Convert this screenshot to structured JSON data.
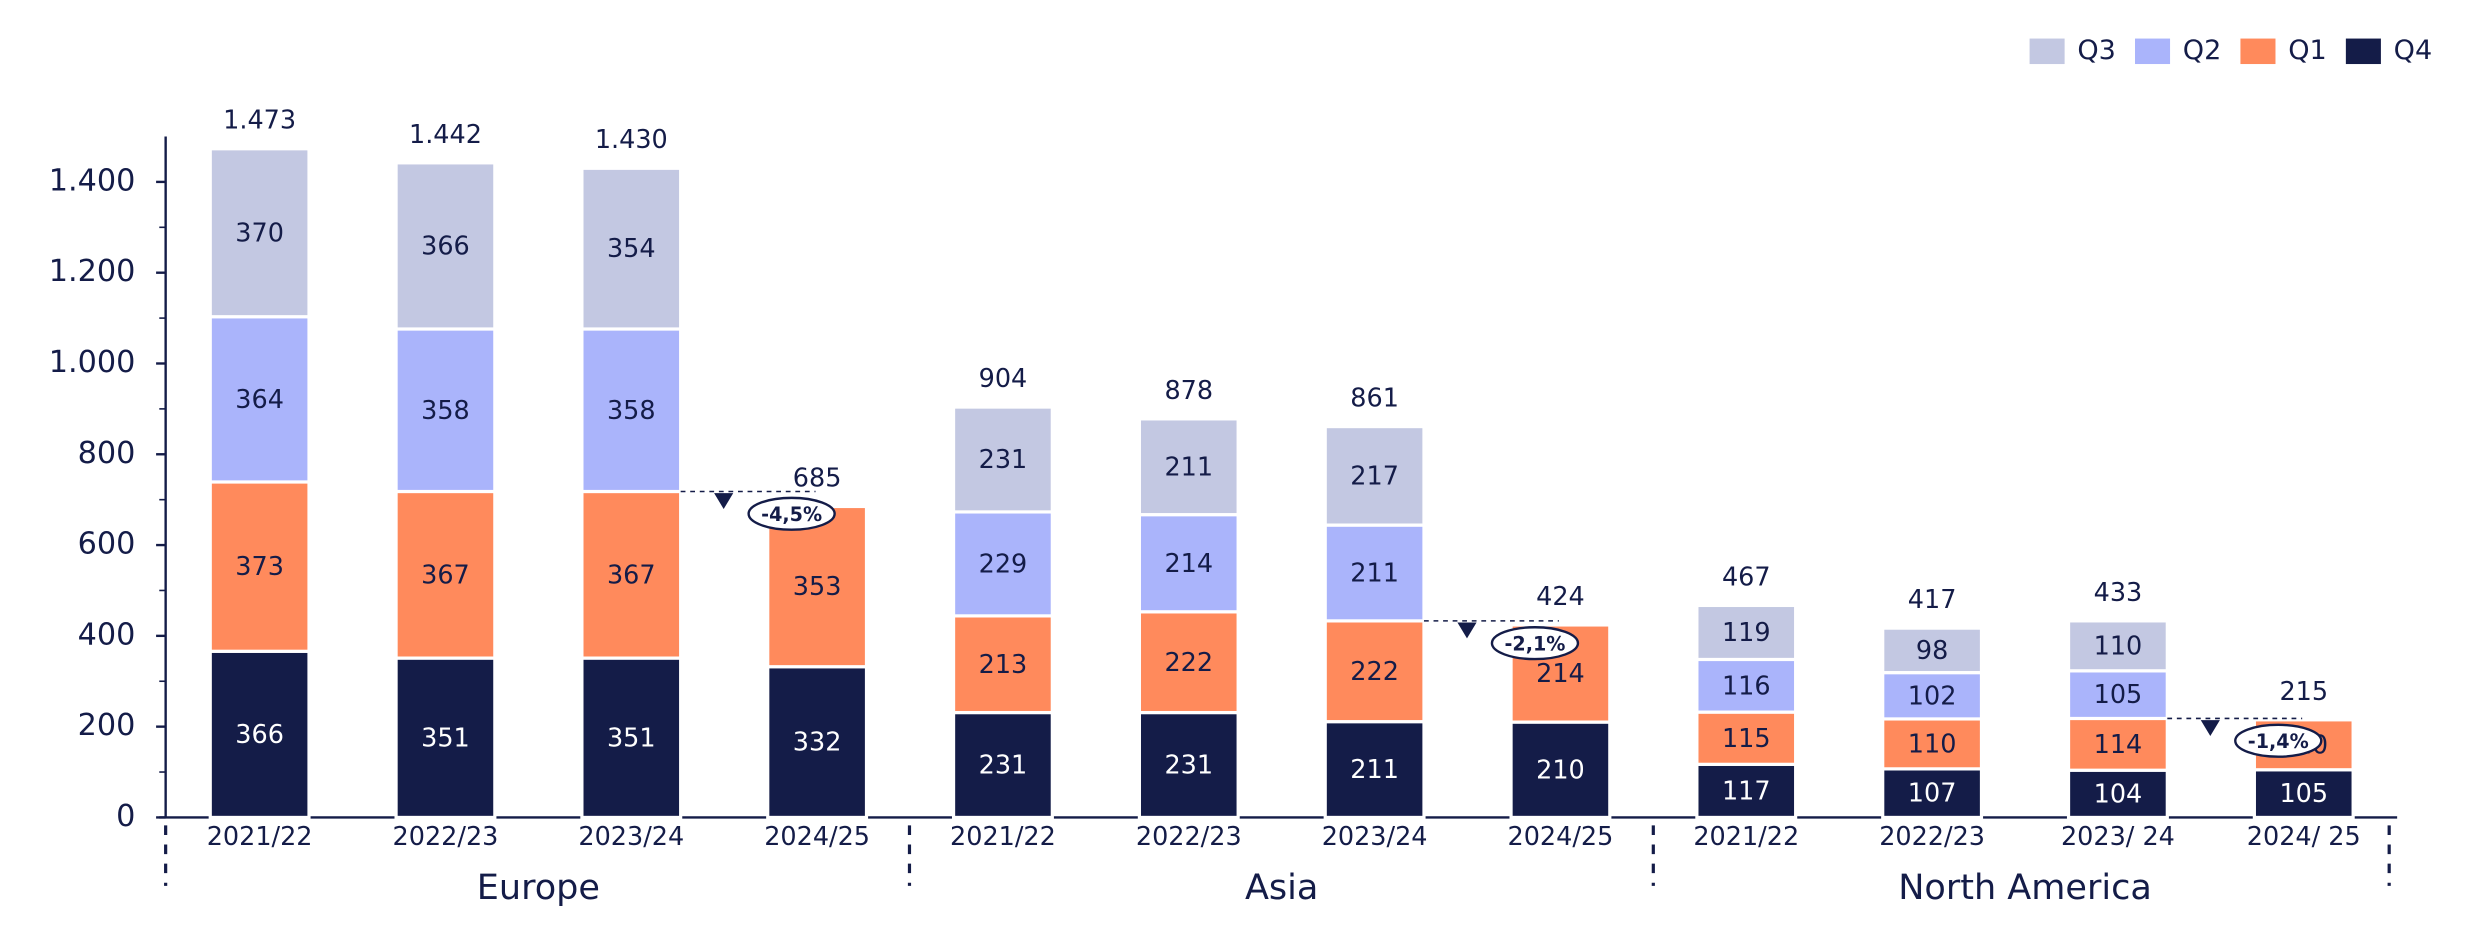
{
  "chart_data": {
    "type": "stacked-bar",
    "categories": [
      "2021/22",
      "2022/23",
      "2023/24",
      "2024/25",
      "2021/22",
      "2022/23",
      "2023/24",
      "2024/25",
      "2021/22",
      "2022/23",
      "2023/ 24",
      "2024/ 25"
    ],
    "groups": [
      "Europe",
      "Asia",
      "North America"
    ],
    "series": [
      {
        "name": "Q4",
        "color": "#141c48",
        "values": [
          366,
          351,
          351,
          332,
          231,
          231,
          211,
          210,
          117,
          107,
          104,
          105
        ]
      },
      {
        "name": "Q1",
        "color": "#ff8a5c",
        "values": [
          373,
          367,
          367,
          353,
          213,
          222,
          222,
          214,
          115,
          110,
          114,
          110
        ]
      },
      {
        "name": "Q2",
        "color": "#aab4fb",
        "values": [
          364,
          358,
          358,
          null,
          229,
          214,
          211,
          null,
          116,
          102,
          105,
          null
        ]
      },
      {
        "name": "Q3",
        "color": "#c3c8e2",
        "values": [
          370,
          366,
          354,
          null,
          231,
          211,
          217,
          null,
          119,
          98,
          110,
          null
        ]
      }
    ],
    "totals": {
      "values": [
        1473,
        1442,
        1430,
        685,
        904,
        878,
        861,
        424,
        467,
        417,
        433,
        215
      ],
      "value_labels": [
        "1.473",
        "1.442",
        "1.430",
        "685",
        "904",
        "878",
        "861",
        "424",
        "467",
        "417",
        "433",
        "215"
      ]
    },
    "annotations": [
      "-4,5%",
      "-2,1%",
      "-1,4%"
    ],
    "ylim": [
      0,
      1500
    ],
    "yticks": [
      0,
      200,
      400,
      600,
      800,
      {
        "value": 1000,
        "label": "1.000"
      },
      {
        "value": 1200,
        "label": "1.200"
      },
      {
        "value": 1400,
        "label": "1.400"
      }
    ],
    "legend": "top-right"
  }
}
